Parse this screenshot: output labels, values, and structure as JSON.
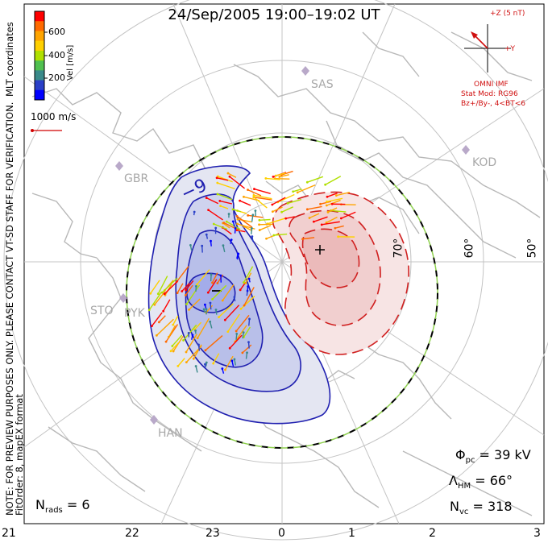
{
  "title": "24/Sep/2005 19:00–19:02 UT",
  "colorbar": {
    "tick_labels": [
      "600",
      "400",
      "200"
    ],
    "label": "Vel [m/s]",
    "colors": [
      "#ff0000",
      "#ff6a00",
      "#ffa500",
      "#ffd000",
      "#b0e000",
      "#50c050",
      "#3a8a8a",
      "#2a40c8",
      "#0000ff"
    ]
  },
  "reference_vector": {
    "label": "1000 m/s"
  },
  "side_text": {
    "mlt_coordinates": "MLT coordinates",
    "note": "NOTE: FOR PREVIEW PURPOSES ONLY. PLEASE CONTACT VT-SD STAFF FOR VERIFICATION.",
    "fit_order": "FitOrder: 8, mapEX format"
  },
  "imf": {
    "z_label": "+Z (5 nT)",
    "y_label": "+Y",
    "source": "OMNI IMF",
    "stat_mod": "Stat Mod: RG96",
    "condition": "Bz+/By-, 4<BT<6"
  },
  "stations": [
    "SAS",
    "KOD",
    "GBR",
    "STO",
    "PYK",
    "HAN"
  ],
  "latitude_labels": [
    "70°",
    "60°",
    "50°"
  ],
  "mlt_labels": [
    "21",
    "22",
    "23",
    "0",
    "1",
    "2",
    "3"
  ],
  "potential": {
    "min_marker": "−",
    "max_marker": "+",
    "min_contour_label": "−9",
    "min_color": "#2020b0",
    "max_color": "#d02020"
  },
  "stats": {
    "phi_pc_symbol": "Φ",
    "phi_pc_sub": "pc",
    "phi_pc_value": " = 39 kV",
    "lambda_hm_symbol": "Λ",
    "lambda_hm_sub": "HM",
    "lambda_hm_value": " = 66°",
    "n_vc_symbol": "N",
    "n_vc_sub": "vc",
    "n_vc_value": " = 318",
    "n_rads_symbol": "N",
    "n_rads_sub": "rads",
    "n_rads_value": " = 6"
  }
}
